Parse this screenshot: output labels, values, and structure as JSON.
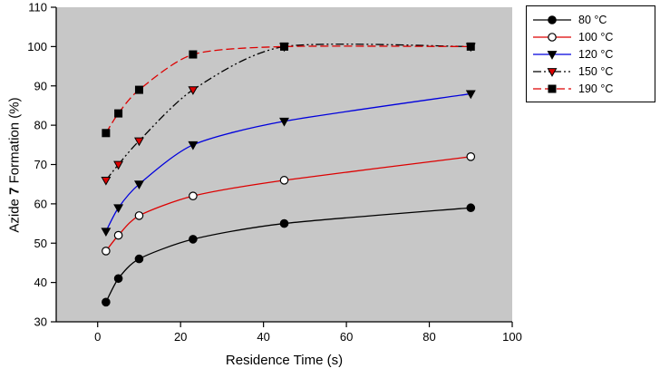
{
  "chart_data": {
    "type": "line",
    "title": "",
    "xlabel": "Residence Time (s)",
    "ylabel": "Azide 7 Formation (%)",
    "ylabel_parts": {
      "prefix": "Azide ",
      "compound": "7",
      "suffix": " Formation (%)"
    },
    "xlim": [
      -10,
      100
    ],
    "ylim": [
      30,
      110
    ],
    "xticks": [
      0,
      20,
      40,
      60,
      80,
      100
    ],
    "yticks": [
      30,
      40,
      50,
      60,
      70,
      80,
      90,
      100,
      110
    ],
    "plot_background": "#c7c7c7",
    "grid": false,
    "legend_position": "outside-top-right",
    "x": [
      2,
      5,
      10,
      23,
      45,
      90
    ],
    "series": [
      {
        "name": "80 °C",
        "line_color": "#000000",
        "line_style": "solid",
        "dash": "",
        "marker": "circle",
        "marker_fill": "#000000",
        "marker_edge": "#000000",
        "values": [
          35,
          41,
          46,
          51,
          55,
          59
        ]
      },
      {
        "name": "100 °C",
        "line_color": "#dd0000",
        "line_style": "solid",
        "dash": "",
        "marker": "circle",
        "marker_fill": "#ffffff",
        "marker_edge": "#000000",
        "values": [
          48,
          52,
          57,
          62,
          66,
          72
        ]
      },
      {
        "name": "120 °C",
        "line_color": "#0000dd",
        "line_style": "solid",
        "dash": "",
        "marker": "triangle-down",
        "marker_fill": "#000000",
        "marker_edge": "#000000",
        "values": [
          53,
          59,
          65,
          75,
          81,
          88
        ]
      },
      {
        "name": "150 °C",
        "line_color": "#000000",
        "line_style": "dash-dot-dot",
        "dash": "9,3,2,3,2,3",
        "marker": "triangle-down",
        "marker_fill": "#dd0000",
        "marker_edge": "#000000",
        "values": [
          66,
          70,
          76,
          89,
          100,
          100
        ]
      },
      {
        "name": "190 °C",
        "line_color": "#dd0000",
        "line_style": "dashed",
        "dash": "9,4",
        "marker": "square",
        "marker_fill": "#000000",
        "marker_edge": "#000000",
        "values": [
          78,
          83,
          89,
          98,
          100,
          100
        ]
      }
    ]
  }
}
